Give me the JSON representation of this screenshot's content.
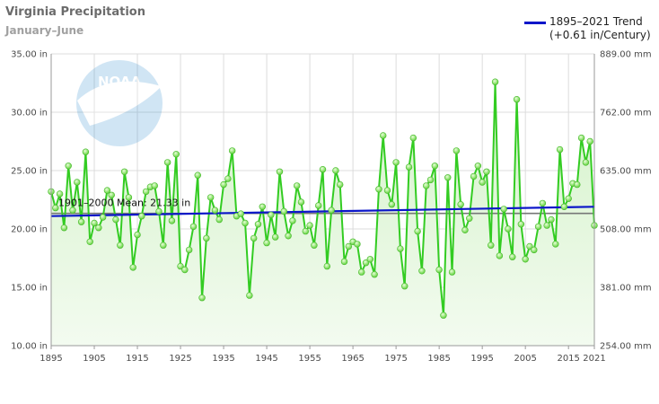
{
  "title": "Virginia Precipitation",
  "subtitle": "January–June",
  "legend": {
    "line1": "1895–2021 Trend",
    "line2": "(+0.61 in/Century)"
  },
  "logo_text": "NOAA",
  "mean_label": "1901–2000 Mean: 21.33 in",
  "colors": {
    "series": "#33cc22",
    "point": "#8ee85a",
    "trend": "#0b16c9",
    "mean": "#777777",
    "fill_top": "#d3f2c8",
    "fill_bottom": "#f3fbf0"
  },
  "chart_data": {
    "type": "line",
    "title": "Virginia Precipitation",
    "subtitle": "January–June",
    "xlim": [
      1895,
      2021
    ],
    "ylim": [
      10,
      35
    ],
    "y_ticks": [
      "10.00 in",
      "15.00 in",
      "20.00 in",
      "25.00 in",
      "30.00 in",
      "35.00 in"
    ],
    "y2_ticks": [
      "254.00 mm",
      "381.00 mm",
      "508.00 mm",
      "635.00 mm",
      "762.00 mm",
      "889.00 mm"
    ],
    "x_ticks": [
      "1895",
      "1905",
      "1915",
      "1925",
      "1935",
      "1945",
      "1955",
      "1965",
      "1975",
      "1985",
      "1995",
      "2005",
      "2015",
      "2021"
    ],
    "mean": 21.33,
    "trend": {
      "start": 21.1,
      "end": 21.9,
      "label": "1895–2021 Trend (+0.61 in/Century)"
    },
    "series": [
      {
        "name": "Precipitation",
        "x": [
          1895,
          1896,
          1897,
          1898,
          1899,
          1900,
          1901,
          1902,
          1903,
          1904,
          1905,
          1906,
          1907,
          1908,
          1909,
          1910,
          1911,
          1912,
          1913,
          1914,
          1915,
          1916,
          1917,
          1918,
          1919,
          1920,
          1921,
          1922,
          1923,
          1924,
          1925,
          1926,
          1927,
          1928,
          1929,
          1930,
          1931,
          1932,
          1933,
          1934,
          1935,
          1936,
          1937,
          1938,
          1939,
          1940,
          1941,
          1942,
          1943,
          1944,
          1945,
          1946,
          1947,
          1948,
          1949,
          1950,
          1951,
          1952,
          1953,
          1954,
          1955,
          1956,
          1957,
          1958,
          1959,
          1960,
          1961,
          1962,
          1963,
          1964,
          1965,
          1966,
          1967,
          1968,
          1969,
          1970,
          1971,
          1972,
          1973,
          1974,
          1975,
          1976,
          1977,
          1978,
          1979,
          1980,
          1981,
          1982,
          1983,
          1984,
          1985,
          1986,
          1987,
          1988,
          1989,
          1990,
          1991,
          1992,
          1993,
          1994,
          1995,
          1996,
          1997,
          1998,
          1999,
          2000,
          2001,
          2002,
          2003,
          2004,
          2005,
          2006,
          2007,
          2008,
          2009,
          2010,
          2011,
          2012,
          2013,
          2014,
          2015,
          2016,
          2017,
          2018,
          2019,
          2020,
          2021
        ],
        "values": [
          23.2,
          21.8,
          23.0,
          20.1,
          25.4,
          21.6,
          24.0,
          20.6,
          26.6,
          18.9,
          20.5,
          20.1,
          21.0,
          23.3,
          22.9,
          20.8,
          18.6,
          24.9,
          22.7,
          16.7,
          19.5,
          21.1,
          23.2,
          23.6,
          23.7,
          21.5,
          18.6,
          25.7,
          20.7,
          26.4,
          16.8,
          16.5,
          18.2,
          20.2,
          24.6,
          14.1,
          19.2,
          22.7,
          21.6,
          20.8,
          23.8,
          24.3,
          26.7,
          21.1,
          21.3,
          20.5,
          14.3,
          19.2,
          20.4,
          21.9,
          18.8,
          21.2,
          19.3,
          24.9,
          21.5,
          19.4,
          20.7,
          23.7,
          22.3,
          19.8,
          20.3,
          18.6,
          22.0,
          25.1,
          16.8,
          21.6,
          25.0,
          23.8,
          17.2,
          18.5,
          18.9,
          18.7,
          16.3,
          17.1,
          17.4,
          16.1,
          23.4,
          28.0,
          23.3,
          22.1,
          25.7,
          18.3,
          15.1,
          25.3,
          27.8,
          19.8,
          16.4,
          23.7,
          24.2,
          25.4,
          16.5,
          12.6,
          24.4,
          16.3,
          26.7,
          22.1,
          19.9,
          20.9,
          24.5,
          25.4,
          24.0,
          24.9,
          18.6,
          32.6,
          17.7,
          21.7,
          20.0,
          17.6,
          31.1,
          20.4,
          17.4,
          18.5,
          18.2,
          20.2,
          22.2,
          20.3,
          20.8,
          18.7,
          26.8,
          21.9,
          22.6,
          23.9,
          23.8,
          27.8,
          25.7,
          27.5,
          20.3
        ]
      }
    ]
  }
}
